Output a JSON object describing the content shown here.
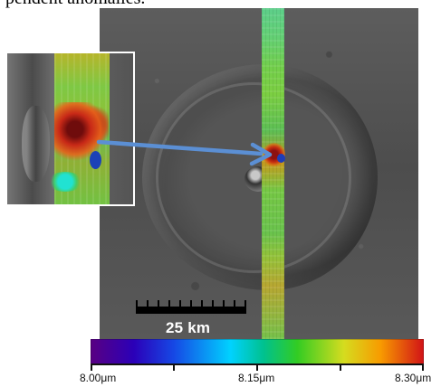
{
  "figure": {
    "caption_fragment": "pendent anomalies.",
    "scale_label": "25 km",
    "colorbar": {
      "labels": [
        "8.00μm",
        "8.15μm",
        "8.30μm"
      ],
      "colors": [
        "#590082",
        "#2b00b8",
        "#1648e5",
        "#00d2ff",
        "#00c18e",
        "#32cc23",
        "#d5dc1f",
        "#f89b00",
        "#d11217"
      ]
    },
    "arrow": {
      "color": "#5b8fd4",
      "icon": "right-arrow-icon"
    }
  }
}
